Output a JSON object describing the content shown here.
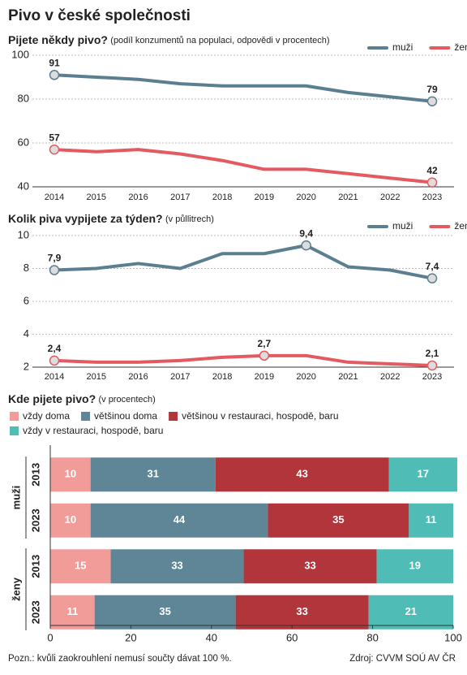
{
  "title": "Pivo v české společnosti",
  "note": "Pozn.: kvůli zaokrouhlení nemusí součty dávat 100 %.",
  "source": "Zdroj: CVVM SOÚ AV ČR",
  "chart_data": [
    {
      "type": "line",
      "title": "Pijete někdy pivo?",
      "subtitle": "(podíl konzumentů na populaci, odpovědi v procentech)",
      "categories": [
        "2014",
        "2015",
        "2016",
        "2017",
        "2018",
        "2019",
        "2020",
        "2021",
        "2022",
        "2023"
      ],
      "series": [
        {
          "name": "muži",
          "color": "#5b7f8f",
          "values": [
            91,
            90,
            89,
            87,
            86,
            86,
            86,
            83,
            81,
            79
          ],
          "value_labels": [
            "91",
            null,
            null,
            null,
            null,
            null,
            null,
            null,
            null,
            "79"
          ]
        },
        {
          "name": "ženy",
          "color": "#e35a60",
          "values": [
            57,
            56,
            57,
            55,
            52,
            48,
            48,
            46,
            44,
            42
          ],
          "value_labels": [
            "57",
            null,
            null,
            null,
            null,
            null,
            null,
            null,
            null,
            "42"
          ]
        }
      ],
      "ylim": [
        40,
        100
      ],
      "yticks": [
        40,
        60,
        80,
        100
      ],
      "grid": true,
      "legend": "top-right"
    },
    {
      "type": "line",
      "title": "Kolik piva vypijete za týden?",
      "subtitle": "(v půllitrech)",
      "categories": [
        "2014",
        "2015",
        "2016",
        "2017",
        "2018",
        "2019",
        "2020",
        "2021",
        "2022",
        "2023"
      ],
      "series": [
        {
          "name": "muži",
          "color": "#5b7f8f",
          "values": [
            7.9,
            8.0,
            8.3,
            8.0,
            8.9,
            8.9,
            9.4,
            8.1,
            7.9,
            7.4
          ],
          "value_labels": [
            "7,9",
            null,
            null,
            null,
            null,
            null,
            "9,4",
            null,
            null,
            "7,4"
          ]
        },
        {
          "name": "ženy",
          "color": "#e35a60",
          "values": [
            2.4,
            2.3,
            2.3,
            2.4,
            2.6,
            2.7,
            2.7,
            2.3,
            2.2,
            2.1
          ],
          "value_labels": [
            "2,4",
            null,
            null,
            null,
            null,
            "2,7",
            null,
            null,
            null,
            "2,1"
          ]
        }
      ],
      "ylim": [
        2,
        10
      ],
      "yticks": [
        2,
        4,
        6,
        8,
        10
      ],
      "grid": true,
      "legend": "top-right"
    },
    {
      "type": "bar",
      "orientation": "horizontal",
      "stacked": true,
      "title": "Kde pijete pivo?",
      "subtitle": "(v procentech)",
      "categories": [
        "2013",
        "2023",
        "2013",
        "2023"
      ],
      "category_groups": [
        "muži",
        "muži",
        "ženy",
        "ženy"
      ],
      "series": [
        {
          "name": "vždy doma",
          "color": "#f29c9a",
          "values": [
            10,
            10,
            15,
            11
          ]
        },
        {
          "name": "většinou doma",
          "color": "#5e8696",
          "values": [
            31,
            44,
            33,
            35
          ]
        },
        {
          "name": "většinou v restauraci, hospodě, baru",
          "color": "#b1353b",
          "values": [
            43,
            35,
            33,
            33
          ]
        },
        {
          "name": "vždy v restauraci, hospodě, baru",
          "color": "#4fbdb5",
          "values": [
            17,
            11,
            19,
            21
          ]
        }
      ],
      "xlim": [
        0,
        100
      ],
      "xticks": [
        0,
        20,
        40,
        60,
        80,
        100
      ],
      "legend": "top-left"
    }
  ]
}
